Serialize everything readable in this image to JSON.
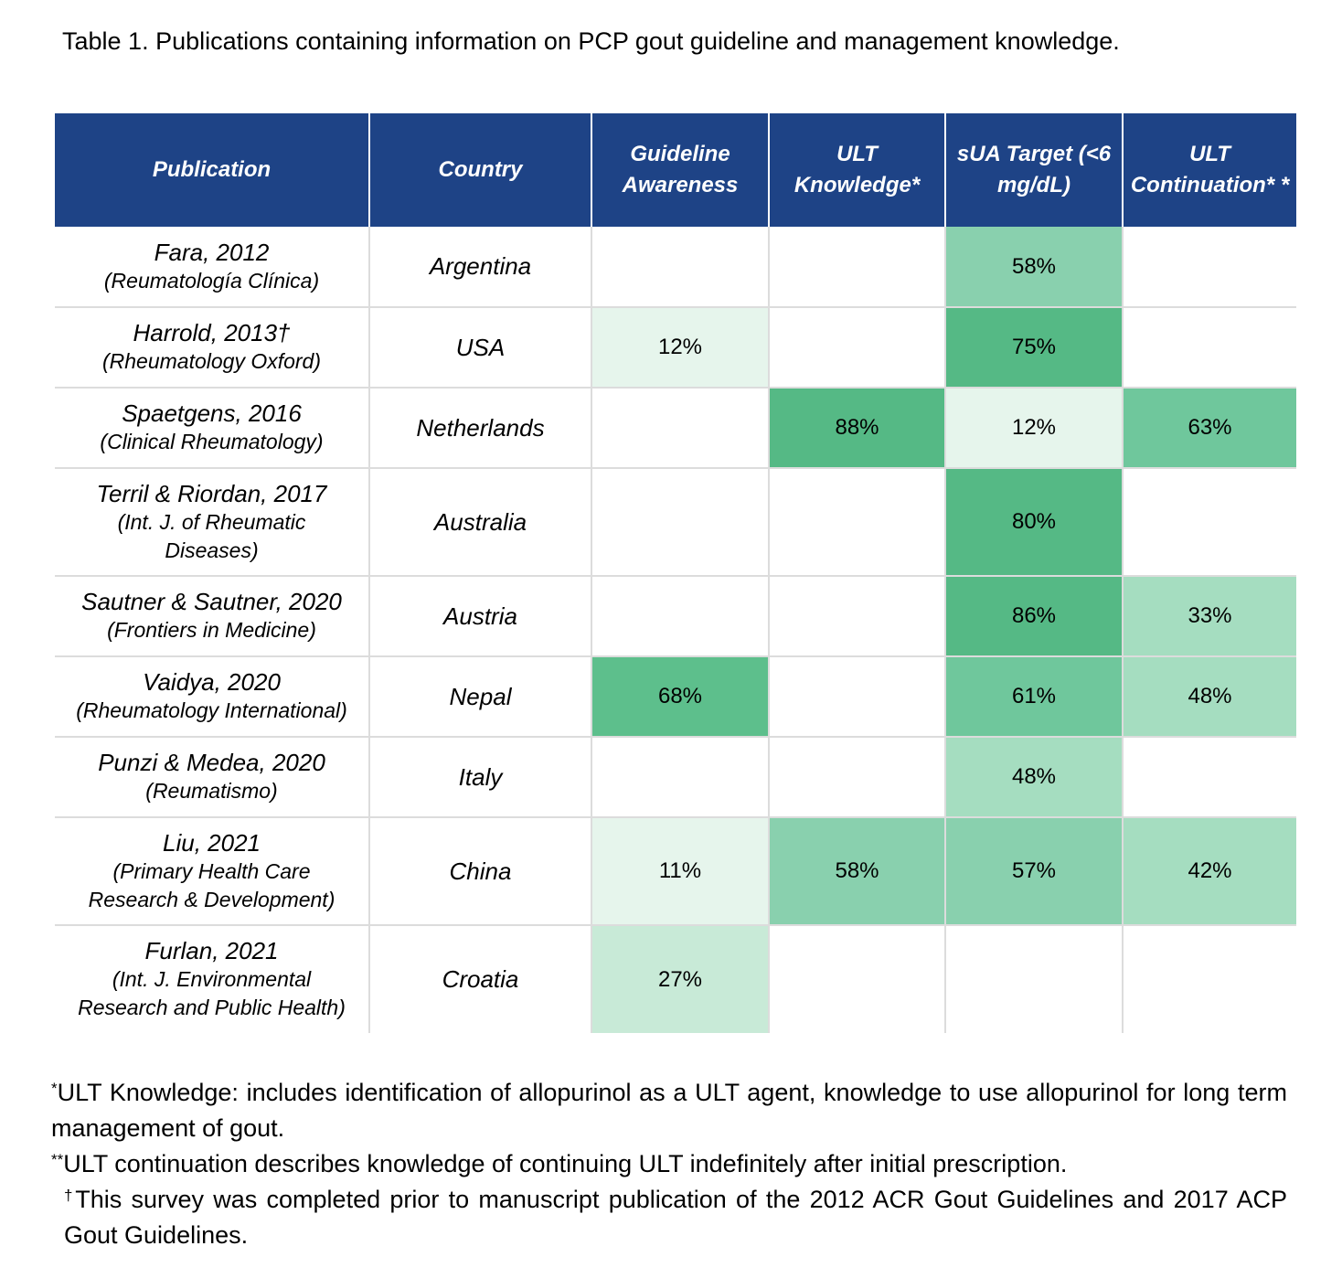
{
  "caption": "Table 1. Publications containing information on PCP gout guideline and management knowledge.",
  "colors": {
    "header_bg": "#1e4386",
    "scale": {
      "0-15": "#e6f5ec",
      "16-30": "#c8eAd7",
      "31-50": "#a5ddc0",
      "51-59": "#89d0ae",
      "60-64": "#6fc79c",
      "65-74": "#5dbf8c",
      "75+": "#55b985"
    }
  },
  "table": {
    "headers": {
      "publication": "Publication",
      "country": "Country",
      "guideline": "Guideline Awareness",
      "ult_knowledge": "ULT Knowledge*",
      "sua_target": "sUA Target (<6 mg/dL)",
      "ult_continuation": "ULT Continuation* *"
    },
    "rows": [
      {
        "name": "Fara, 2012",
        "journal": "(Reumatología Clínica)",
        "country": "Argentina",
        "guideline": "",
        "ult_knowledge": "",
        "sua_target": "58%",
        "ult_continuation": ""
      },
      {
        "name": "Harrold, 2013†",
        "journal": "(Rheumatology Oxford)",
        "country": "USA",
        "guideline": "12%",
        "ult_knowledge": "",
        "sua_target": "75%",
        "ult_continuation": ""
      },
      {
        "name": "Spaetgens, 2016",
        "journal": "(Clinical Rheumatology)",
        "country": "Netherlands",
        "guideline": "",
        "ult_knowledge": "88%",
        "sua_target": "12%",
        "ult_continuation": "63%"
      },
      {
        "name": "Terril & Riordan, 2017",
        "journal": "(Int. J. of Rheumatic\nDiseases)",
        "country": "Australia",
        "guideline": "",
        "ult_knowledge": "",
        "sua_target": "80%",
        "ult_continuation": ""
      },
      {
        "name": "Sautner & Sautner, 2020",
        "journal": "(Frontiers in Medicine)",
        "country": "Austria",
        "guideline": "",
        "ult_knowledge": "",
        "sua_target": "86%",
        "ult_continuation": "33%"
      },
      {
        "name": "Vaidya, 2020",
        "journal": "(Rheumatology International)",
        "country": "Nepal",
        "guideline": "68%",
        "ult_knowledge": "",
        "sua_target": "61%",
        "ult_continuation": "48%"
      },
      {
        "name": "Punzi & Medea, 2020",
        "journal": "(Reumatismo)",
        "country": "Italy",
        "guideline": "",
        "ult_knowledge": "",
        "sua_target": "48%",
        "ult_continuation": ""
      },
      {
        "name": "Liu, 2021",
        "journal": "(Primary Health Care\nResearch & Development)",
        "country": "China",
        "guideline": "11%",
        "ult_knowledge": "58%",
        "sua_target": "57%",
        "ult_continuation": "42%"
      },
      {
        "name": "Furlan, 2021",
        "journal": "(Int. J. Environmental\nResearch and Public Health)",
        "country": "Croatia",
        "guideline": "27%",
        "ult_knowledge": "",
        "sua_target": "",
        "ult_continuation": ""
      }
    ]
  },
  "footnotes": {
    "note1_mark": "*",
    "note1": "ULT Knowledge: includes identification of allopurinol as a ULT agent, knowledge to use allopurinol for long term management of gout.",
    "note2_mark": "**",
    "note2": "ULT continuation describes knowledge of continuing ULT indefinitely after initial prescription.",
    "note3_mark": "†",
    "note3": "This survey was completed prior to manuscript publication of the 2012 ACR Gout Guidelines and 2017 ACP Gout Guidelines."
  }
}
